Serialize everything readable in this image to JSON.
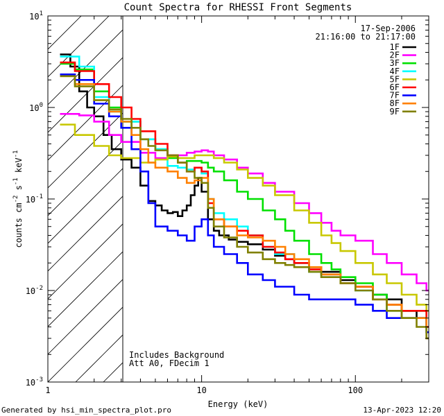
{
  "chart_data": {
    "type": "line",
    "title": "Count Spectra for RHESSI Front Segments",
    "xlabel": "Energy (keV)",
    "ylabel_parts": {
      "base": "counts cm",
      "exp1": "-2",
      "mid": " s",
      "exp2": "-1",
      "tail": " keV",
      "exp3": "-1"
    },
    "x_scale": "log",
    "y_scale": "log",
    "xlim": [
      1,
      300
    ],
    "ylim": [
      0.001,
      10
    ],
    "x_ticks": [
      {
        "value": 1,
        "label": "1"
      },
      {
        "value": 10,
        "label": "10"
      },
      {
        "value": 100,
        "label": "100"
      }
    ],
    "y_ticks": [
      {
        "value": 0.001,
        "base": "10",
        "exp": "-3"
      },
      {
        "value": 0.01,
        "base": "10",
        "exp": "-2"
      },
      {
        "value": 0.1,
        "base": "10",
        "exp": "-1"
      },
      {
        "value": 1,
        "base": "10",
        "exp": "0"
      },
      {
        "value": 10,
        "base": "10",
        "exp": "1"
      }
    ],
    "date": "17-Sep-2006",
    "time_range": "21:16:00 to 21:17:00",
    "shaded_region": {
      "from_kev": 1,
      "to_kev": 3,
      "pattern": "diagonal hatch"
    },
    "annotations": [
      "Includes Background",
      "Att A0, FDecim 1"
    ],
    "series": [
      {
        "name": "1F",
        "color": "#000000",
        "points": [
          [
            1.2,
            3.8
          ],
          [
            1.4,
            2.8
          ],
          [
            1.6,
            1.5
          ],
          [
            1.8,
            1.0
          ],
          [
            2.0,
            0.8
          ],
          [
            2.3,
            0.5
          ],
          [
            2.6,
            0.35
          ],
          [
            3.0,
            0.27
          ],
          [
            3.5,
            0.22
          ],
          [
            4.0,
            0.14
          ],
          [
            4.5,
            0.095
          ],
          [
            5,
            0.085
          ],
          [
            5.5,
            0.075
          ],
          [
            6,
            0.07
          ],
          [
            6.5,
            0.072
          ],
          [
            7,
            0.065
          ],
          [
            7.5,
            0.075
          ],
          [
            8,
            0.085
          ],
          [
            8.5,
            0.11
          ],
          [
            9,
            0.14
          ],
          [
            9.5,
            0.17
          ],
          [
            10,
            0.12
          ],
          [
            11,
            0.06
          ],
          [
            12,
            0.045
          ],
          [
            13,
            0.04
          ],
          [
            15,
            0.036
          ],
          [
            17,
            0.034
          ],
          [
            20,
            0.032
          ],
          [
            25,
            0.028
          ],
          [
            30,
            0.024
          ],
          [
            35,
            0.022
          ],
          [
            40,
            0.02
          ],
          [
            50,
            0.018
          ],
          [
            60,
            0.016
          ],
          [
            80,
            0.013
          ],
          [
            100,
            0.011
          ],
          [
            130,
            0.009
          ],
          [
            160,
            0.008
          ],
          [
            200,
            0.006
          ],
          [
            250,
            0.005
          ],
          [
            290,
            0.0035
          ]
        ]
      },
      {
        "name": "2F",
        "color": "#ff00ff",
        "points": [
          [
            1.2,
            0.85
          ],
          [
            1.6,
            0.82
          ],
          [
            2.0,
            0.7
          ],
          [
            2.5,
            0.5
          ],
          [
            3.0,
            0.42
          ],
          [
            4.0,
            0.32
          ],
          [
            5,
            0.28
          ],
          [
            6,
            0.3
          ],
          [
            7,
            0.3
          ],
          [
            8,
            0.32
          ],
          [
            9,
            0.33
          ],
          [
            10,
            0.34
          ],
          [
            11,
            0.33
          ],
          [
            12,
            0.3
          ],
          [
            14,
            0.27
          ],
          [
            17,
            0.22
          ],
          [
            20,
            0.19
          ],
          [
            25,
            0.15
          ],
          [
            30,
            0.12
          ],
          [
            40,
            0.09
          ],
          [
            50,
            0.07
          ],
          [
            60,
            0.055
          ],
          [
            70,
            0.045
          ],
          [
            80,
            0.04
          ],
          [
            100,
            0.035
          ],
          [
            130,
            0.025
          ],
          [
            160,
            0.02
          ],
          [
            200,
            0.015
          ],
          [
            250,
            0.012
          ],
          [
            290,
            0.01
          ]
        ]
      },
      {
        "name": "3F",
        "color": "#00e000",
        "points": [
          [
            1.2,
            3.0
          ],
          [
            1.5,
            2.6
          ],
          [
            2.0,
            1.5
          ],
          [
            2.5,
            1.0
          ],
          [
            3.0,
            0.7
          ],
          [
            4.0,
            0.45
          ],
          [
            5,
            0.35
          ],
          [
            6,
            0.28
          ],
          [
            7,
            0.25
          ],
          [
            8,
            0.26
          ],
          [
            9,
            0.26
          ],
          [
            10,
            0.25
          ],
          [
            11,
            0.22
          ],
          [
            12,
            0.2
          ],
          [
            14,
            0.16
          ],
          [
            17,
            0.12
          ],
          [
            20,
            0.1
          ],
          [
            25,
            0.075
          ],
          [
            30,
            0.06
          ],
          [
            35,
            0.045
          ],
          [
            40,
            0.035
          ],
          [
            50,
            0.025
          ],
          [
            60,
            0.02
          ],
          [
            70,
            0.017
          ],
          [
            80,
            0.014
          ],
          [
            100,
            0.012
          ],
          [
            130,
            0.009
          ],
          [
            160,
            0.007
          ],
          [
            200,
            0.006
          ],
          [
            290,
            0.004
          ]
        ]
      },
      {
        "name": "4F",
        "color": "#00ffff",
        "points": [
          [
            1.2,
            3.6
          ],
          [
            1.6,
            2.8
          ],
          [
            2.0,
            1.3
          ],
          [
            2.5,
            0.9
          ],
          [
            3.0,
            0.7
          ],
          [
            4.0,
            0.45
          ],
          [
            5,
            0.35
          ],
          [
            6,
            0.23
          ],
          [
            7,
            0.22
          ],
          [
            8,
            0.21
          ],
          [
            9,
            0.22
          ],
          [
            10,
            0.19
          ],
          [
            11,
            0.1
          ],
          [
            12,
            0.07
          ],
          [
            14,
            0.06
          ],
          [
            17,
            0.05
          ],
          [
            20,
            0.04
          ],
          [
            25,
            0.03
          ],
          [
            30,
            0.025
          ],
          [
            40,
            0.02
          ],
          [
            50,
            0.016
          ],
          [
            60,
            0.014
          ],
          [
            80,
            0.012
          ],
          [
            100,
            0.01
          ],
          [
            130,
            0.008
          ],
          [
            160,
            0.006
          ],
          [
            200,
            0.005
          ],
          [
            290,
            0.0035
          ]
        ]
      },
      {
        "name": "5F",
        "color": "#c8c800",
        "points": [
          [
            1.2,
            0.65
          ],
          [
            1.5,
            0.5
          ],
          [
            2.0,
            0.38
          ],
          [
            2.5,
            0.3
          ],
          [
            3.0,
            0.28
          ],
          [
            4.0,
            0.25
          ],
          [
            5,
            0.27
          ],
          [
            6,
            0.29
          ],
          [
            7,
            0.28
          ],
          [
            8,
            0.28
          ],
          [
            9,
            0.3
          ],
          [
            10,
            0.3
          ],
          [
            11,
            0.3
          ],
          [
            12,
            0.28
          ],
          [
            14,
            0.25
          ],
          [
            17,
            0.21
          ],
          [
            20,
            0.17
          ],
          [
            25,
            0.14
          ],
          [
            30,
            0.11
          ],
          [
            40,
            0.075
          ],
          [
            50,
            0.055
          ],
          [
            60,
            0.04
          ],
          [
            70,
            0.033
          ],
          [
            80,
            0.027
          ],
          [
            100,
            0.02
          ],
          [
            130,
            0.015
          ],
          [
            160,
            0.012
          ],
          [
            200,
            0.009
          ],
          [
            250,
            0.007
          ],
          [
            290,
            0.006
          ]
        ]
      },
      {
        "name": "6F",
        "color": "#ff0000",
        "points": [
          [
            1.2,
            3.1
          ],
          [
            1.5,
            2.5
          ],
          [
            2.0,
            1.8
          ],
          [
            2.5,
            1.3
          ],
          [
            3.0,
            1.0
          ],
          [
            3.5,
            0.75
          ],
          [
            4.0,
            0.55
          ],
          [
            5,
            0.4
          ],
          [
            6,
            0.3
          ],
          [
            7,
            0.25
          ],
          [
            8,
            0.2
          ],
          [
            9,
            0.22
          ],
          [
            10,
            0.2
          ],
          [
            11,
            0.09
          ],
          [
            12,
            0.06
          ],
          [
            14,
            0.05
          ],
          [
            17,
            0.045
          ],
          [
            20,
            0.04
          ],
          [
            25,
            0.03
          ],
          [
            30,
            0.026
          ],
          [
            35,
            0.022
          ],
          [
            40,
            0.02
          ],
          [
            50,
            0.017
          ],
          [
            60,
            0.015
          ],
          [
            80,
            0.012
          ],
          [
            100,
            0.011
          ],
          [
            130,
            0.008
          ],
          [
            160,
            0.007
          ],
          [
            200,
            0.006
          ],
          [
            290,
            0.004
          ]
        ]
      },
      {
        "name": "7F",
        "color": "#0000ff",
        "points": [
          [
            1.2,
            2.3
          ],
          [
            1.5,
            2.0
          ],
          [
            2.0,
            1.1
          ],
          [
            2.5,
            0.8
          ],
          [
            3.0,
            0.6
          ],
          [
            3.5,
            0.35
          ],
          [
            4.0,
            0.2
          ],
          [
            4.5,
            0.09
          ],
          [
            5,
            0.05
          ],
          [
            6,
            0.045
          ],
          [
            7,
            0.04
          ],
          [
            8,
            0.035
          ],
          [
            9,
            0.05
          ],
          [
            10,
            0.06
          ],
          [
            11,
            0.04
          ],
          [
            12,
            0.03
          ],
          [
            14,
            0.025
          ],
          [
            17,
            0.02
          ],
          [
            20,
            0.015
          ],
          [
            25,
            0.013
          ],
          [
            30,
            0.011
          ],
          [
            40,
            0.009
          ],
          [
            50,
            0.008
          ],
          [
            60,
            0.008
          ],
          [
            80,
            0.008
          ],
          [
            100,
            0.007
          ],
          [
            130,
            0.006
          ],
          [
            160,
            0.005
          ],
          [
            200,
            0.005
          ],
          [
            290,
            0.0035
          ]
        ]
      },
      {
        "name": "8F",
        "color": "#ff8000",
        "points": [
          [
            1.2,
            2.2
          ],
          [
            1.5,
            1.8
          ],
          [
            2.0,
            1.2
          ],
          [
            2.5,
            0.9
          ],
          [
            3.0,
            0.7
          ],
          [
            3.5,
            0.5
          ],
          [
            4.0,
            0.35
          ],
          [
            4.5,
            0.25
          ],
          [
            5,
            0.22
          ],
          [
            6,
            0.2
          ],
          [
            7,
            0.17
          ],
          [
            8,
            0.15
          ],
          [
            9,
            0.16
          ],
          [
            10,
            0.17
          ],
          [
            11,
            0.1
          ],
          [
            12,
            0.06
          ],
          [
            14,
            0.05
          ],
          [
            17,
            0.04
          ],
          [
            20,
            0.038
          ],
          [
            25,
            0.035
          ],
          [
            30,
            0.03
          ],
          [
            35,
            0.025
          ],
          [
            40,
            0.022
          ],
          [
            50,
            0.018
          ],
          [
            60,
            0.015
          ],
          [
            80,
            0.012
          ],
          [
            100,
            0.011
          ],
          [
            130,
            0.008
          ],
          [
            160,
            0.007
          ],
          [
            200,
            0.005
          ],
          [
            290,
            0.003
          ]
        ]
      },
      {
        "name": "9F",
        "color": "#808000",
        "points": [
          [
            1.2,
            2.2
          ],
          [
            1.5,
            1.7
          ],
          [
            2.0,
            1.2
          ],
          [
            2.5,
            0.95
          ],
          [
            3.0,
            0.75
          ],
          [
            3.5,
            0.6
          ],
          [
            4.0,
            0.45
          ],
          [
            4.5,
            0.38
          ],
          [
            5,
            0.34
          ],
          [
            6,
            0.3
          ],
          [
            7,
            0.25
          ],
          [
            8,
            0.2
          ],
          [
            9,
            0.17
          ],
          [
            10,
            0.15
          ],
          [
            11,
            0.08
          ],
          [
            12,
            0.05
          ],
          [
            14,
            0.038
          ],
          [
            17,
            0.03
          ],
          [
            20,
            0.026
          ],
          [
            25,
            0.022
          ],
          [
            30,
            0.02
          ],
          [
            35,
            0.019
          ],
          [
            40,
            0.018
          ],
          [
            50,
            0.016
          ],
          [
            60,
            0.014
          ],
          [
            80,
            0.012
          ],
          [
            100,
            0.01
          ],
          [
            130,
            0.008
          ],
          [
            160,
            0.006
          ],
          [
            200,
            0.005
          ],
          [
            250,
            0.004
          ],
          [
            290,
            0.003
          ]
        ]
      }
    ]
  },
  "footer": {
    "generated_by": "Generated by hsi_min_spectra_plot.pro",
    "timestamp": "13-Apr-2023 12:20"
  }
}
